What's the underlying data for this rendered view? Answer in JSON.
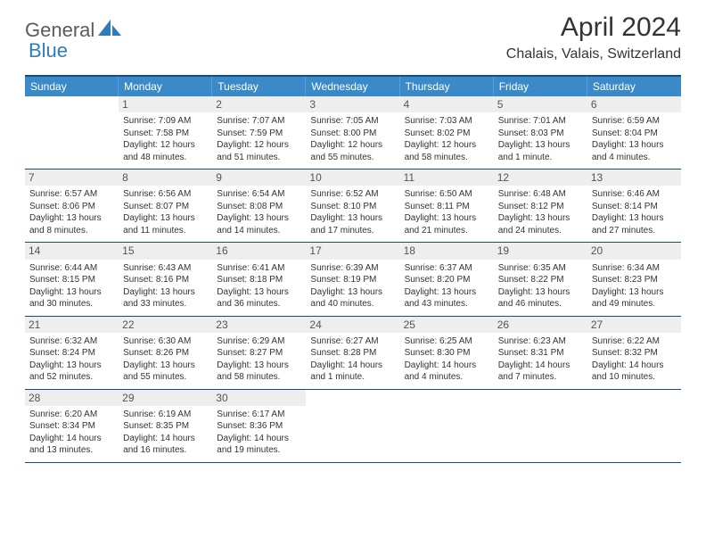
{
  "logo": {
    "text_left": "General",
    "text_right": "Blue"
  },
  "title": "April 2024",
  "location": "Chalais, Valais, Switzerland",
  "colors": {
    "header_bg": "#3a8ac9",
    "header_border_top": "#1a4e7a",
    "week_divider": "#1a4e7a",
    "daynum_bg": "#eeeeee",
    "text": "#333333",
    "logo_dark": "#5a5a5a",
    "logo_blue": "#2f7bbf"
  },
  "weekdays": [
    "Sunday",
    "Monday",
    "Tuesday",
    "Wednesday",
    "Thursday",
    "Friday",
    "Saturday"
  ],
  "weeks": [
    [
      {
        "n": "",
        "sr": "",
        "ss": "",
        "d1": "",
        "d2": ""
      },
      {
        "n": "1",
        "sr": "Sunrise: 7:09 AM",
        "ss": "Sunset: 7:58 PM",
        "d1": "Daylight: 12 hours",
        "d2": "and 48 minutes."
      },
      {
        "n": "2",
        "sr": "Sunrise: 7:07 AM",
        "ss": "Sunset: 7:59 PM",
        "d1": "Daylight: 12 hours",
        "d2": "and 51 minutes."
      },
      {
        "n": "3",
        "sr": "Sunrise: 7:05 AM",
        "ss": "Sunset: 8:00 PM",
        "d1": "Daylight: 12 hours",
        "d2": "and 55 minutes."
      },
      {
        "n": "4",
        "sr": "Sunrise: 7:03 AM",
        "ss": "Sunset: 8:02 PM",
        "d1": "Daylight: 12 hours",
        "d2": "and 58 minutes."
      },
      {
        "n": "5",
        "sr": "Sunrise: 7:01 AM",
        "ss": "Sunset: 8:03 PM",
        "d1": "Daylight: 13 hours",
        "d2": "and 1 minute."
      },
      {
        "n": "6",
        "sr": "Sunrise: 6:59 AM",
        "ss": "Sunset: 8:04 PM",
        "d1": "Daylight: 13 hours",
        "d2": "and 4 minutes."
      }
    ],
    [
      {
        "n": "7",
        "sr": "Sunrise: 6:57 AM",
        "ss": "Sunset: 8:06 PM",
        "d1": "Daylight: 13 hours",
        "d2": "and 8 minutes."
      },
      {
        "n": "8",
        "sr": "Sunrise: 6:56 AM",
        "ss": "Sunset: 8:07 PM",
        "d1": "Daylight: 13 hours",
        "d2": "and 11 minutes."
      },
      {
        "n": "9",
        "sr": "Sunrise: 6:54 AM",
        "ss": "Sunset: 8:08 PM",
        "d1": "Daylight: 13 hours",
        "d2": "and 14 minutes."
      },
      {
        "n": "10",
        "sr": "Sunrise: 6:52 AM",
        "ss": "Sunset: 8:10 PM",
        "d1": "Daylight: 13 hours",
        "d2": "and 17 minutes."
      },
      {
        "n": "11",
        "sr": "Sunrise: 6:50 AM",
        "ss": "Sunset: 8:11 PM",
        "d1": "Daylight: 13 hours",
        "d2": "and 21 minutes."
      },
      {
        "n": "12",
        "sr": "Sunrise: 6:48 AM",
        "ss": "Sunset: 8:12 PM",
        "d1": "Daylight: 13 hours",
        "d2": "and 24 minutes."
      },
      {
        "n": "13",
        "sr": "Sunrise: 6:46 AM",
        "ss": "Sunset: 8:14 PM",
        "d1": "Daylight: 13 hours",
        "d2": "and 27 minutes."
      }
    ],
    [
      {
        "n": "14",
        "sr": "Sunrise: 6:44 AM",
        "ss": "Sunset: 8:15 PM",
        "d1": "Daylight: 13 hours",
        "d2": "and 30 minutes."
      },
      {
        "n": "15",
        "sr": "Sunrise: 6:43 AM",
        "ss": "Sunset: 8:16 PM",
        "d1": "Daylight: 13 hours",
        "d2": "and 33 minutes."
      },
      {
        "n": "16",
        "sr": "Sunrise: 6:41 AM",
        "ss": "Sunset: 8:18 PM",
        "d1": "Daylight: 13 hours",
        "d2": "and 36 minutes."
      },
      {
        "n": "17",
        "sr": "Sunrise: 6:39 AM",
        "ss": "Sunset: 8:19 PM",
        "d1": "Daylight: 13 hours",
        "d2": "and 40 minutes."
      },
      {
        "n": "18",
        "sr": "Sunrise: 6:37 AM",
        "ss": "Sunset: 8:20 PM",
        "d1": "Daylight: 13 hours",
        "d2": "and 43 minutes."
      },
      {
        "n": "19",
        "sr": "Sunrise: 6:35 AM",
        "ss": "Sunset: 8:22 PM",
        "d1": "Daylight: 13 hours",
        "d2": "and 46 minutes."
      },
      {
        "n": "20",
        "sr": "Sunrise: 6:34 AM",
        "ss": "Sunset: 8:23 PM",
        "d1": "Daylight: 13 hours",
        "d2": "and 49 minutes."
      }
    ],
    [
      {
        "n": "21",
        "sr": "Sunrise: 6:32 AM",
        "ss": "Sunset: 8:24 PM",
        "d1": "Daylight: 13 hours",
        "d2": "and 52 minutes."
      },
      {
        "n": "22",
        "sr": "Sunrise: 6:30 AM",
        "ss": "Sunset: 8:26 PM",
        "d1": "Daylight: 13 hours",
        "d2": "and 55 minutes."
      },
      {
        "n": "23",
        "sr": "Sunrise: 6:29 AM",
        "ss": "Sunset: 8:27 PM",
        "d1": "Daylight: 13 hours",
        "d2": "and 58 minutes."
      },
      {
        "n": "24",
        "sr": "Sunrise: 6:27 AM",
        "ss": "Sunset: 8:28 PM",
        "d1": "Daylight: 14 hours",
        "d2": "and 1 minute."
      },
      {
        "n": "25",
        "sr": "Sunrise: 6:25 AM",
        "ss": "Sunset: 8:30 PM",
        "d1": "Daylight: 14 hours",
        "d2": "and 4 minutes."
      },
      {
        "n": "26",
        "sr": "Sunrise: 6:23 AM",
        "ss": "Sunset: 8:31 PM",
        "d1": "Daylight: 14 hours",
        "d2": "and 7 minutes."
      },
      {
        "n": "27",
        "sr": "Sunrise: 6:22 AM",
        "ss": "Sunset: 8:32 PM",
        "d1": "Daylight: 14 hours",
        "d2": "and 10 minutes."
      }
    ],
    [
      {
        "n": "28",
        "sr": "Sunrise: 6:20 AM",
        "ss": "Sunset: 8:34 PM",
        "d1": "Daylight: 14 hours",
        "d2": "and 13 minutes."
      },
      {
        "n": "29",
        "sr": "Sunrise: 6:19 AM",
        "ss": "Sunset: 8:35 PM",
        "d1": "Daylight: 14 hours",
        "d2": "and 16 minutes."
      },
      {
        "n": "30",
        "sr": "Sunrise: 6:17 AM",
        "ss": "Sunset: 8:36 PM",
        "d1": "Daylight: 14 hours",
        "d2": "and 19 minutes."
      },
      {
        "n": "",
        "sr": "",
        "ss": "",
        "d1": "",
        "d2": ""
      },
      {
        "n": "",
        "sr": "",
        "ss": "",
        "d1": "",
        "d2": ""
      },
      {
        "n": "",
        "sr": "",
        "ss": "",
        "d1": "",
        "d2": ""
      },
      {
        "n": "",
        "sr": "",
        "ss": "",
        "d1": "",
        "d2": ""
      }
    ]
  ]
}
